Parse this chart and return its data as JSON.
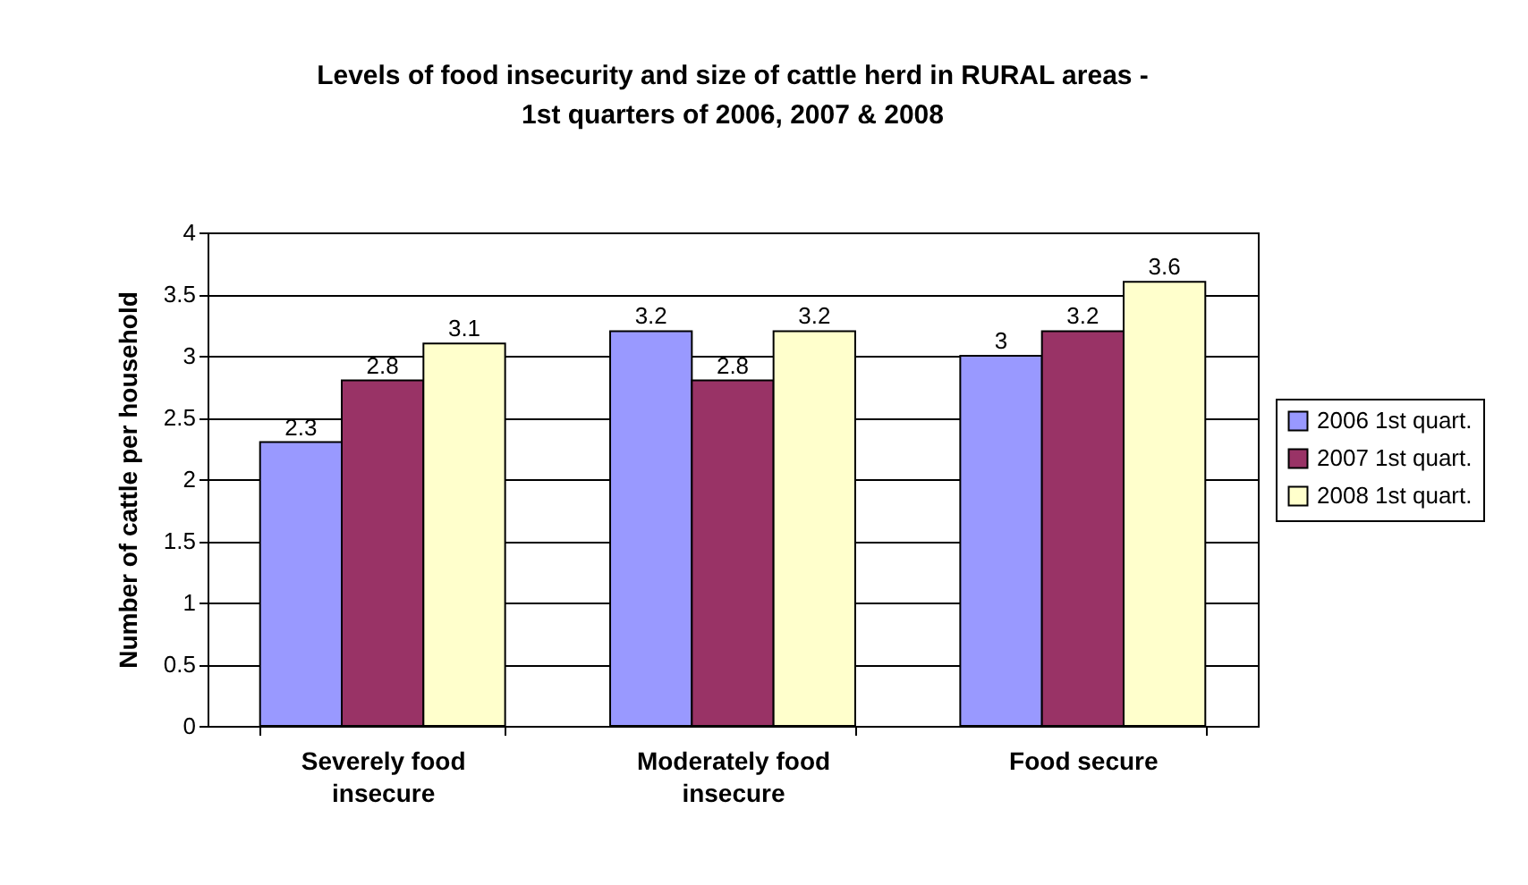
{
  "chart_data": {
    "type": "bar",
    "title": "Levels of food insecurity and size of cattle herd in RURAL areas -\n1st quarters of 2006, 2007 & 2008",
    "ylabel": "Number of cattle per household",
    "categories": [
      "Severely food insecure",
      "Moderately food insecure",
      "Food secure"
    ],
    "series": [
      {
        "name": "2006 1st quart.",
        "color": "#9999ff",
        "values": [
          2.3,
          3.2,
          3
        ]
      },
      {
        "name": "2007 1st quart.",
        "color": "#993366",
        "values": [
          2.8,
          2.8,
          3.2
        ]
      },
      {
        "name": "2008 1st quart.",
        "color": "#ffffcc",
        "values": [
          3.1,
          3.2,
          3.6
        ]
      }
    ],
    "ylim": [
      0,
      4
    ],
    "yticks": [
      0,
      0.5,
      1,
      1.5,
      2,
      2.5,
      3,
      3.5,
      4
    ],
    "grid": "y",
    "legend": "right",
    "data_labels": true
  }
}
